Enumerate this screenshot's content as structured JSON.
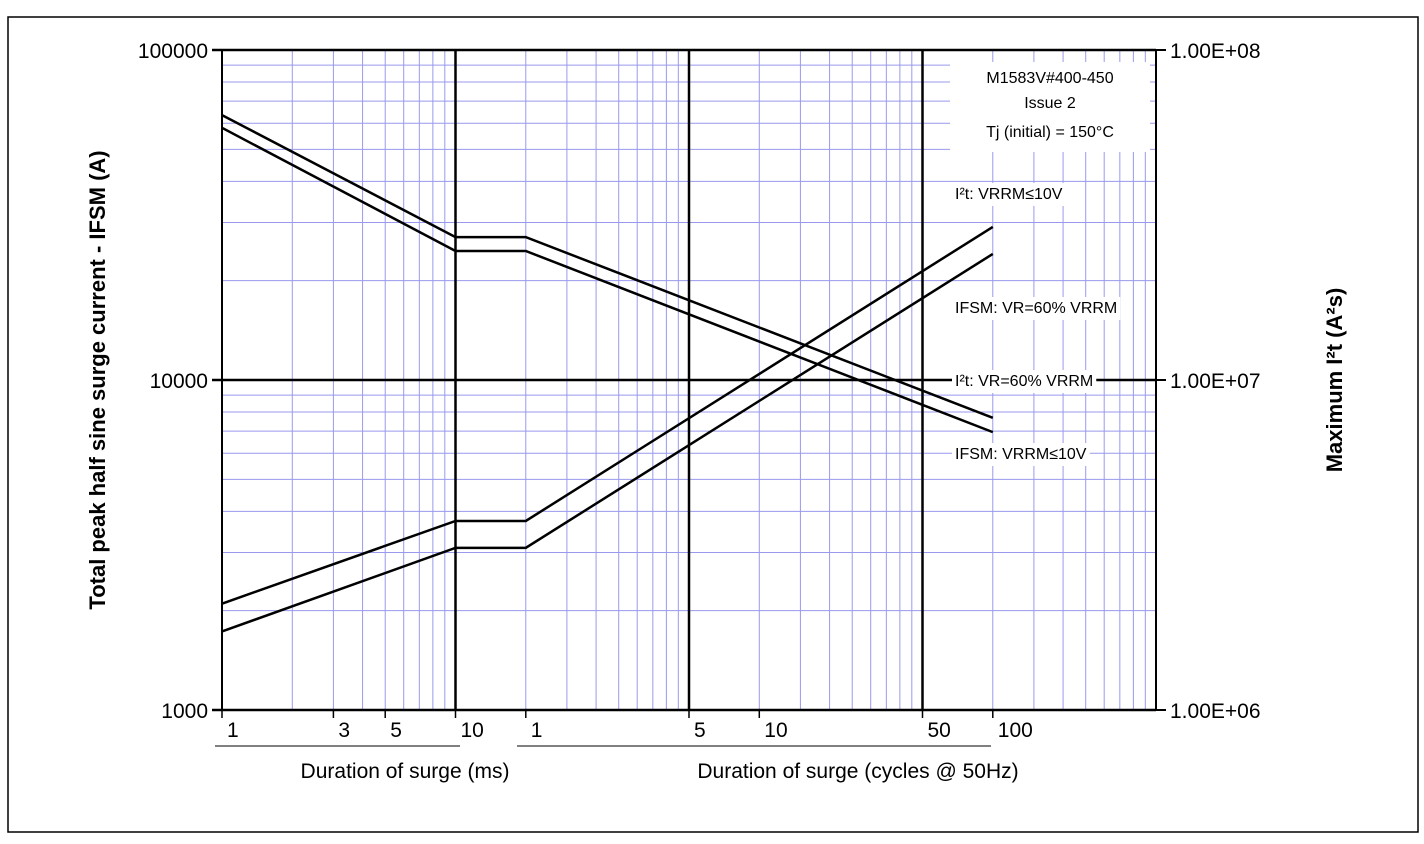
{
  "chart_data": {
    "type": "line",
    "annotations": [
      "M1583V#400-450",
      "Issue 2",
      "Tj (initial) = 150°C"
    ],
    "ylabel": "Total peak half sine surge current - IFSM (A)",
    "y2label": "Maximum I²t (A²s)",
    "xlabels": [
      "Duration of surge (ms)",
      "Duration of surge (cycles @ 50Hz)"
    ],
    "log_x": true,
    "log_y": true,
    "grid": true,
    "xlim": [
      1,
      10000
    ],
    "xticks": [
      1,
      3,
      5,
      10,
      {
        "value": 20,
        "label": "1"
      },
      {
        "value": 100,
        "label": "5"
      },
      {
        "value": 200,
        "label": "10"
      },
      {
        "value": 1000,
        "label": "50"
      },
      {
        "value": 2000,
        "label": "100"
      }
    ],
    "ylim": [
      1000,
      100000
    ],
    "yticks": [
      1000,
      10000,
      100000
    ],
    "y2lim": [
      1000000,
      100000000
    ],
    "y2ticks": [
      {
        "value": 1000000,
        "label": "1.00E+06"
      },
      {
        "value": 10000000,
        "label": "1.00E+07"
      },
      {
        "value": 100000000,
        "label": "1.00E+08"
      }
    ],
    "x": [
      1,
      10,
      20,
      2000
    ],
    "series": [
      {
        "name": "I²t: VRRM≤10V",
        "color": "#000000",
        "axis": "y2",
        "values": [
          2100000,
          3740000,
          3740000,
          29100000
        ]
      },
      {
        "name": "IFSM: VR=60% VRRM",
        "color": "#000000",
        "values": [
          58100,
          24600,
          24600,
          6950
        ]
      },
      {
        "name": "I²t: VR=60% VRRM",
        "color": "#000000",
        "axis": "y2",
        "values": [
          1730000,
          3100000,
          3100000,
          24100000
        ]
      },
      {
        "name": "IFSM: VRRM≤10V",
        "color": "#000000",
        "values": [
          63500,
          27100,
          27100,
          7680
        ]
      }
    ]
  }
}
